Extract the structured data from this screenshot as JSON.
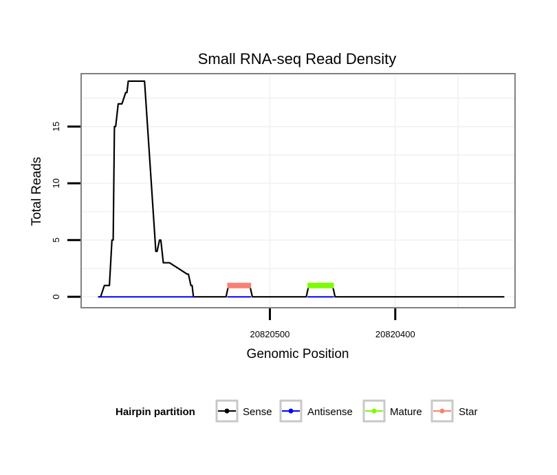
{
  "chart_data": {
    "type": "line",
    "title": "Small RNA-seq Read Density",
    "xlabel": "Genomic Position",
    "ylabel": "Total Reads",
    "xlim": [
      20820650,
      20820305
    ],
    "ylim": [
      -0.9,
      19.6
    ],
    "x_ticks": [
      20820500,
      20820400
    ],
    "x_tick_labels": [
      "20820500",
      "20820400"
    ],
    "y_ticks": [
      0,
      5,
      10,
      15
    ],
    "y_tick_labels": [
      "0",
      "5",
      "10",
      "15"
    ],
    "legend": {
      "title": "Hairpin partition",
      "position": "bottom",
      "entries": [
        {
          "name": "Sense",
          "color": "#000000"
        },
        {
          "name": "Antisense",
          "color": "#0000ff"
        },
        {
          "name": "Mature",
          "color": "#7cfc00"
        },
        {
          "name": "Star",
          "color": "#fa8072"
        }
      ]
    },
    "series": [
      {
        "name": "Sense",
        "color": "#000000",
        "width": 2.2,
        "x": [
          20820637,
          20820635,
          20820632,
          20820628,
          20820626,
          20820625,
          20820624,
          20820623,
          20820621,
          20820620,
          20820618,
          20820615,
          20820614,
          20820613,
          20820611,
          20820610,
          20820607,
          20820600,
          20820591,
          20820590,
          20820588,
          20820587,
          20820586,
          20820585,
          20820583,
          20820582,
          20820581,
          20820580,
          20820566,
          20820565,
          20820563,
          20820562,
          20820561,
          20820559,
          20820558,
          20820557,
          20820554,
          20820553,
          20820535,
          20820533,
          20820516,
          20820514,
          20820497,
          20820495,
          20820471,
          20820469,
          20820450,
          20820448,
          20820313
        ],
        "y": [
          0,
          0,
          1,
          1,
          5,
          5,
          15,
          15,
          17,
          17,
          17,
          18,
          18,
          19,
          19,
          19,
          19,
          19,
          4,
          4,
          5,
          5,
          4,
          3,
          3,
          3,
          3,
          3,
          2,
          2,
          1,
          1,
          0,
          0,
          0,
          0,
          0,
          0,
          0,
          1,
          1,
          0,
          0,
          0,
          0,
          1,
          1,
          0,
          0
        ]
      },
      {
        "name": "Antisense",
        "color": "#0000ff",
        "width": 2,
        "x": [
          20820637,
          20820560
        ],
        "y": [
          0,
          0
        ]
      },
      {
        "name": "Antisense",
        "color": "#0000ff",
        "width": 2,
        "x": [
          20820534,
          20820515
        ],
        "y": [
          0,
          0
        ]
      },
      {
        "name": "Antisense",
        "color": "#0000ff",
        "width": 2,
        "x": [
          20820470,
          20820449
        ],
        "y": [
          0,
          0
        ]
      },
      {
        "name": "Star",
        "color": "#fa8072",
        "width": 8,
        "x": [
          20820534,
          20820515
        ],
        "y": [
          1,
          1
        ]
      },
      {
        "name": "Mature",
        "color": "#7cfc00",
        "width": 8,
        "x": [
          20820470,
          20820449
        ],
        "y": [
          1,
          1
        ]
      }
    ]
  }
}
